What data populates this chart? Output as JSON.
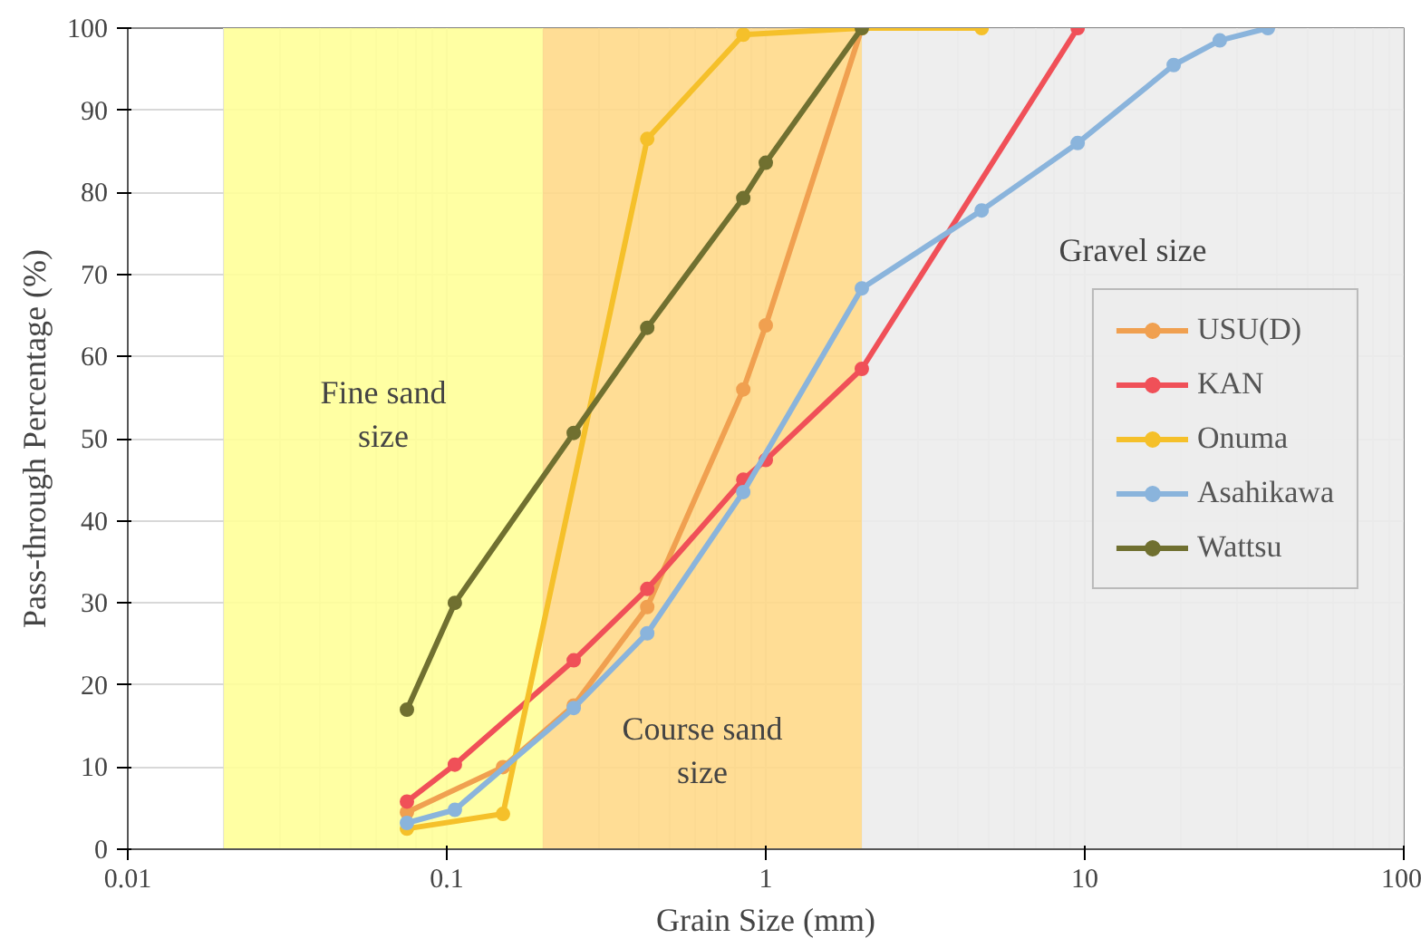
{
  "chart_data": {
    "type": "line",
    "xlabel": "Grain Size (mm)",
    "ylabel": "Pass-through Percentage (%)",
    "log": "x",
    "xlim": [
      0.01,
      100
    ],
    "xticks": [
      0.01,
      0.1,
      1,
      10,
      100
    ],
    "ylim": [
      0,
      100
    ],
    "yticks": [
      0,
      10,
      20,
      30,
      40,
      50,
      60,
      70,
      80,
      90,
      100
    ],
    "grid": true,
    "legend": "right",
    "marker": "circle",
    "line_style": "solid",
    "bands": [
      {
        "axis": "x",
        "from": 0.02,
        "to": 0.2,
        "label": "Fine sand size",
        "color": "#ffff99"
      },
      {
        "axis": "x",
        "from": 0.2,
        "to": 2,
        "label": "Course sand size",
        "color": "#ffd98a"
      },
      {
        "axis": "x",
        "from": 2,
        "to": 100,
        "label": "Gravel size",
        "color": "#ececec"
      }
    ],
    "series": [
      {
        "name": "USU(D)",
        "color": "#f0a050",
        "x": [
          0.075,
          0.15,
          0.25,
          0.425,
          0.85,
          1,
          2
        ],
        "values": [
          4.5,
          10,
          17.5,
          29.5,
          56,
          63.8,
          100
        ]
      },
      {
        "name": "KAN",
        "color": "#f05058",
        "x": [
          0.075,
          0.106,
          0.25,
          0.425,
          0.85,
          1,
          2,
          9.5
        ],
        "values": [
          5.8,
          10.3,
          23,
          31.7,
          45,
          47.4,
          58.5,
          100
        ]
      },
      {
        "name": "Onuma",
        "color": "#f5c02a",
        "x": [
          0.075,
          0.15,
          0.425,
          0.85,
          2,
          4.75
        ],
        "values": [
          2.5,
          4.3,
          86.5,
          99.2,
          100,
          100
        ]
      },
      {
        "name": "Asahikawa",
        "color": "#8ab4dc",
        "x": [
          0.075,
          0.106,
          0.25,
          0.425,
          0.85,
          2,
          4.75,
          9.5,
          19,
          26.5,
          37.5
        ],
        "values": [
          3.2,
          4.8,
          17.2,
          26.3,
          43.5,
          68.3,
          77.8,
          86,
          95.5,
          98.5,
          100
        ]
      },
      {
        "name": "Wattsu",
        "color": "#707030",
        "x": [
          0.075,
          0.106,
          0.25,
          0.425,
          0.85,
          1,
          2
        ],
        "values": [
          17,
          30,
          50.7,
          63.5,
          79.3,
          83.6,
          100
        ]
      }
    ]
  }
}
